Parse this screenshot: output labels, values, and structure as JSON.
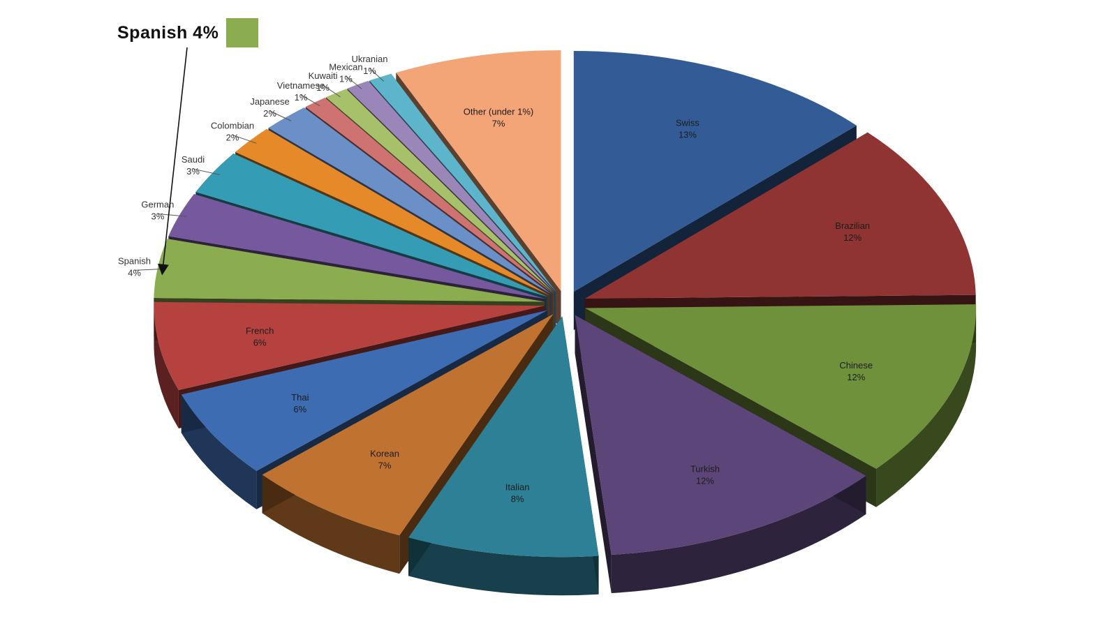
{
  "callout": {
    "text": "Spanish 4%",
    "color": "#8cad4f"
  },
  "chart_data": {
    "type": "pie",
    "title": "",
    "slices": [
      {
        "label": "Swiss",
        "value": 13,
        "display": "13%",
        "color": "#335c97"
      },
      {
        "label": "Brazilian",
        "value": 12,
        "display": "12%",
        "color": "#8f3432"
      },
      {
        "label": "Chinese",
        "value": 12,
        "display": "12%",
        "color": "#70913b"
      },
      {
        "label": "Turkish",
        "value": 12,
        "display": "12%",
        "color": "#5c4679"
      },
      {
        "label": "Italian",
        "value": 8,
        "display": "8%",
        "color": "#2e8097"
      },
      {
        "label": "Korean",
        "value": 7,
        "display": "7%",
        "color": "#c07230"
      },
      {
        "label": "Thai",
        "value": 6,
        "display": "6%",
        "color": "#3e6cb2"
      },
      {
        "label": "French",
        "value": 6,
        "display": "6%",
        "color": "#b64240"
      },
      {
        "label": "Spanish",
        "value": 4,
        "display": "4%",
        "color": "#8cad4f"
      },
      {
        "label": "German",
        "value": 3,
        "display": "3%",
        "color": "#76589f"
      },
      {
        "label": "Saudi",
        "value": 3,
        "display": "3%",
        "color": "#349db5"
      },
      {
        "label": "Colombian",
        "value": 2,
        "display": "2%",
        "color": "#e58929"
      },
      {
        "label": "Japanese",
        "value": 2,
        "display": "2%",
        "color": "#6b8fc7"
      },
      {
        "label": "Vietnamese",
        "value": 1,
        "display": "1%",
        "color": "#ce7372"
      },
      {
        "label": "Kuwaiti",
        "value": 1,
        "display": "1%",
        "color": "#a6c16a"
      },
      {
        "label": "Mexican",
        "value": 1,
        "display": "1%",
        "color": "#9a86b8"
      },
      {
        "label": "Ukranian",
        "value": 1,
        "display": "1%",
        "color": "#5db5cc"
      },
      {
        "label": "Other (under 1%)",
        "value": 7,
        "display": "7%",
        "color": "#f4a577"
      }
    ]
  }
}
